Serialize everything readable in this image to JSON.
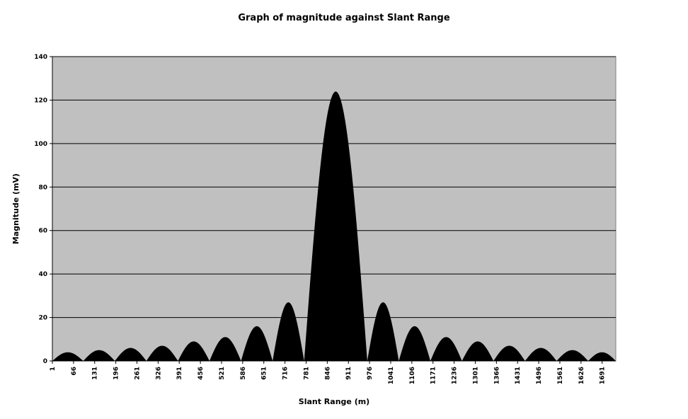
{
  "chart_data": {
    "type": "area",
    "title": "Graph of magnitude against Slant Range",
    "xlabel": "Slant Range (m)",
    "ylabel": "Magnitude (mV)",
    "ylim": [
      0,
      140
    ],
    "y_ticks": [
      0,
      20,
      40,
      60,
      80,
      100,
      120,
      140
    ],
    "x_ticks": [
      1,
      66,
      131,
      196,
      261,
      326,
      391,
      456,
      521,
      586,
      651,
      716,
      781,
      846,
      911,
      976,
      1041,
      1106,
      1171,
      1236,
      1301,
      1366,
      1431,
      1496,
      1561,
      1626,
      1691
    ],
    "xlim": [
      1,
      1733
    ],
    "grid": true,
    "legend": "none",
    "lobes": [
      {
        "start": 1,
        "end": 96,
        "peak": 4
      },
      {
        "start": 96,
        "end": 193,
        "peak": 5
      },
      {
        "start": 193,
        "end": 290,
        "peak": 6
      },
      {
        "start": 290,
        "end": 387,
        "peak": 7
      },
      {
        "start": 387,
        "end": 484,
        "peak": 9
      },
      {
        "start": 484,
        "end": 581,
        "peak": 11
      },
      {
        "start": 581,
        "end": 678,
        "peak": 16
      },
      {
        "start": 678,
        "end": 775,
        "peak": 27
      },
      {
        "start": 775,
        "end": 969,
        "peak": 124
      },
      {
        "start": 969,
        "end": 1066,
        "peak": 27
      },
      {
        "start": 1066,
        "end": 1163,
        "peak": 16
      },
      {
        "start": 1163,
        "end": 1260,
        "peak": 11
      },
      {
        "start": 1260,
        "end": 1357,
        "peak": 9
      },
      {
        "start": 1357,
        "end": 1454,
        "peak": 7
      },
      {
        "start": 1454,
        "end": 1551,
        "peak": 6
      },
      {
        "start": 1551,
        "end": 1648,
        "peak": 5
      },
      {
        "start": 1648,
        "end": 1733,
        "peak": 4
      }
    ],
    "colors": {
      "plot_background": "#c0c0c0",
      "fill": "#000000",
      "grid": "#000000"
    }
  }
}
